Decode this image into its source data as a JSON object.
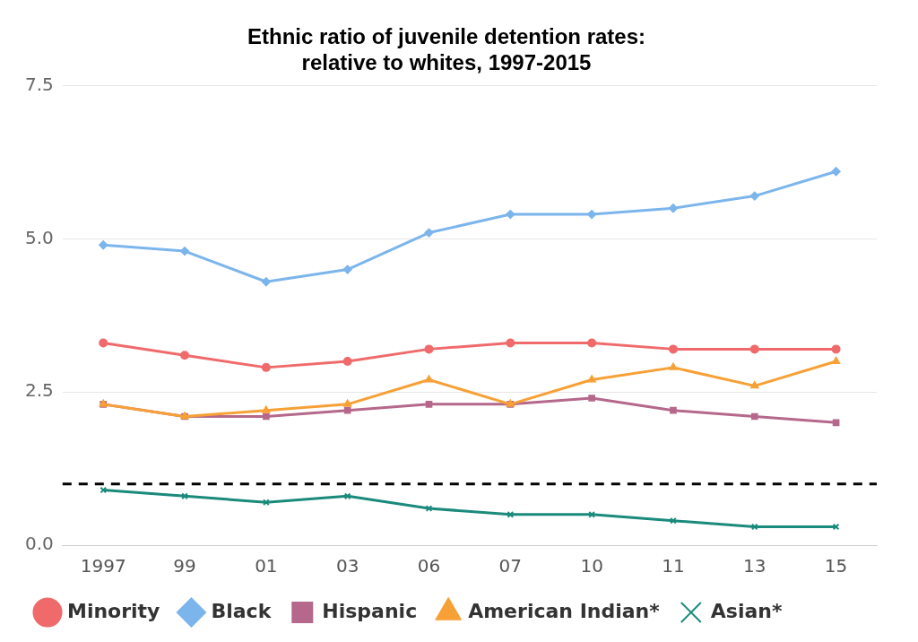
{
  "chart_data": {
    "type": "line",
    "title": "Ethnic ratio of juvenile detention rates:\nrelative to whites, 1997-2015",
    "categories": [
      "1997",
      "99",
      "01",
      "03",
      "06",
      "07",
      "10",
      "11",
      "13",
      "15"
    ],
    "series": [
      {
        "name": "Minority",
        "color": "#f06a6b",
        "marker": "circle",
        "values": [
          3.3,
          3.1,
          2.9,
          3.0,
          3.2,
          3.3,
          3.3,
          3.2,
          3.2,
          3.2
        ]
      },
      {
        "name": "Black",
        "color": "#7cb5ec",
        "marker": "diamond",
        "values": [
          4.9,
          4.8,
          4.3,
          4.5,
          5.1,
          5.4,
          5.4,
          5.5,
          5.7,
          6.1
        ]
      },
      {
        "name": "Hispanic",
        "color": "#b5688c",
        "marker": "square",
        "values": [
          2.3,
          2.1,
          2.1,
          2.2,
          2.3,
          2.3,
          2.4,
          2.2,
          2.1,
          2.0
        ]
      },
      {
        "name": "American Indian*",
        "color": "#f7a035",
        "marker": "triangle",
        "values": [
          2.3,
          2.1,
          2.2,
          2.3,
          2.7,
          2.3,
          2.7,
          2.9,
          2.6,
          3.0
        ]
      },
      {
        "name": "Asian*",
        "color": "#1a8a7c",
        "marker": "cross",
        "values": [
          0.9,
          0.8,
          0.7,
          0.8,
          0.6,
          0.5,
          0.5,
          0.4,
          0.3,
          0.3
        ]
      }
    ],
    "ylim": [
      0,
      7.5
    ],
    "yticks": [
      {
        "value": 0,
        "label": "0.0"
      },
      {
        "value": 2.5,
        "label": "2.5"
      },
      {
        "value": 5,
        "label": "5.0"
      },
      {
        "value": 7.5,
        "label": "7.5"
      }
    ],
    "ref_lines": [
      {
        "axis": "y",
        "value": 1,
        "color": "#000000",
        "line_style": "dashed"
      }
    ],
    "grid": "y",
    "legend": "bottom",
    "line_style": "solid"
  }
}
